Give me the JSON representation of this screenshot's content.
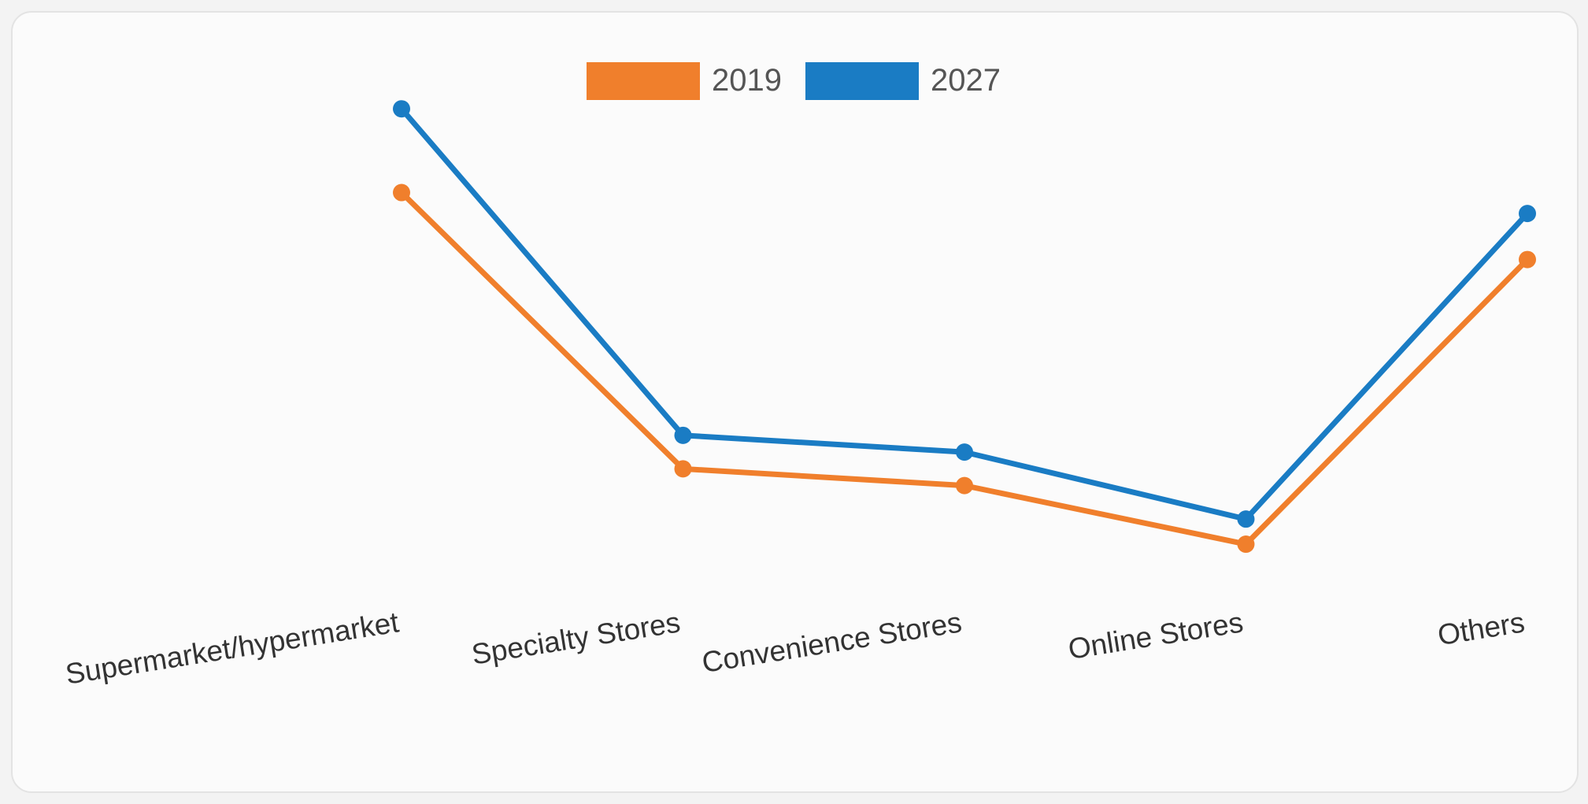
{
  "chart_data": {
    "type": "line",
    "title": "",
    "xlabel": "",
    "ylabel": "",
    "categories": [
      "Supermarket/hypermarket",
      "Specialty Stores",
      "Convenience Stores",
      "Online Stores",
      "Others"
    ],
    "series": [
      {
        "name": "2019",
        "color": "#f07f2c",
        "values": [
          72,
          39,
          37,
          30,
          64
        ]
      },
      {
        "name": "2027",
        "color": "#1a7cc4",
        "values": [
          82,
          43,
          41,
          33,
          69.5
        ]
      }
    ],
    "ylim": [
      0,
      95
    ],
    "grid": false,
    "y_axis_visible": false,
    "legend_position": "top-center",
    "legend_marker": "rectangle"
  }
}
